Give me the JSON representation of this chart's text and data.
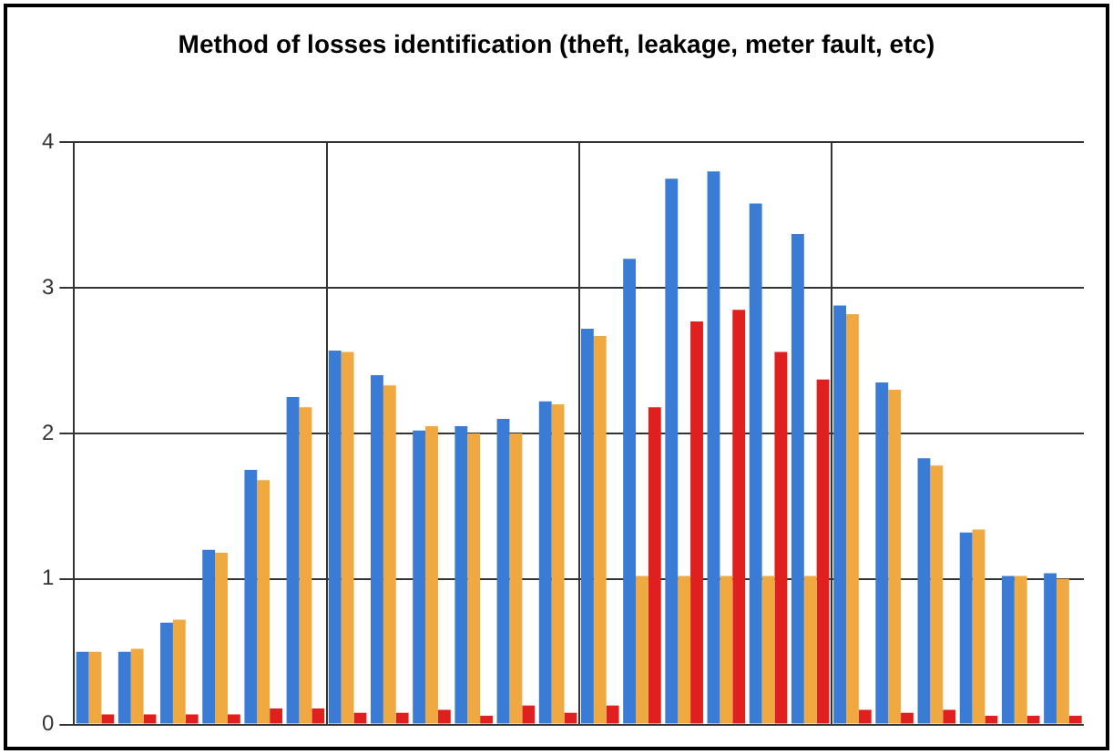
{
  "chart_data": {
    "type": "bar",
    "title": "Method of losses identification (theft, leakage, meter fault, etc)",
    "categories": [
      null,
      null,
      null,
      null,
      null,
      null,
      null,
      null,
      null,
      null,
      null,
      null,
      null,
      null,
      null,
      null,
      null,
      null,
      null,
      null,
      null,
      null,
      null,
      null
    ],
    "series": [
      {
        "color": "#3a7bd5",
        "values": [
          0.5,
          0.5,
          0.7,
          1.2,
          1.75,
          2.25,
          2.57,
          2.4,
          2.02,
          2.05,
          2.1,
          2.22,
          2.72,
          3.2,
          3.75,
          3.8,
          3.58,
          3.37,
          2.88,
          2.35,
          1.83,
          1.32,
          1.02,
          1.04
        ]
      },
      {
        "color": "#f0a840",
        "values": [
          0.5,
          0.52,
          0.72,
          1.18,
          1.68,
          2.18,
          2.56,
          2.33,
          2.05,
          2.0,
          2.0,
          2.2,
          2.67,
          1.02,
          1.02,
          1.02,
          1.02,
          1.02,
          2.82,
          2.3,
          1.78,
          1.34,
          1.02,
          1.0
        ]
      },
      {
        "color": "#e0201e",
        "values": [
          0.07,
          0.07,
          0.07,
          0.07,
          0.11,
          0.11,
          0.08,
          0.08,
          0.1,
          0.06,
          0.13,
          0.08,
          0.13,
          2.18,
          2.77,
          2.85,
          2.56,
          2.37,
          0.1,
          0.08,
          0.1,
          0.06,
          0.06,
          0.06
        ]
      }
    ],
    "ylim": [
      0,
      4
    ],
    "yticks": [
      0,
      1,
      2,
      3,
      4
    ],
    "grid": true,
    "tick_labels": "y"
  }
}
